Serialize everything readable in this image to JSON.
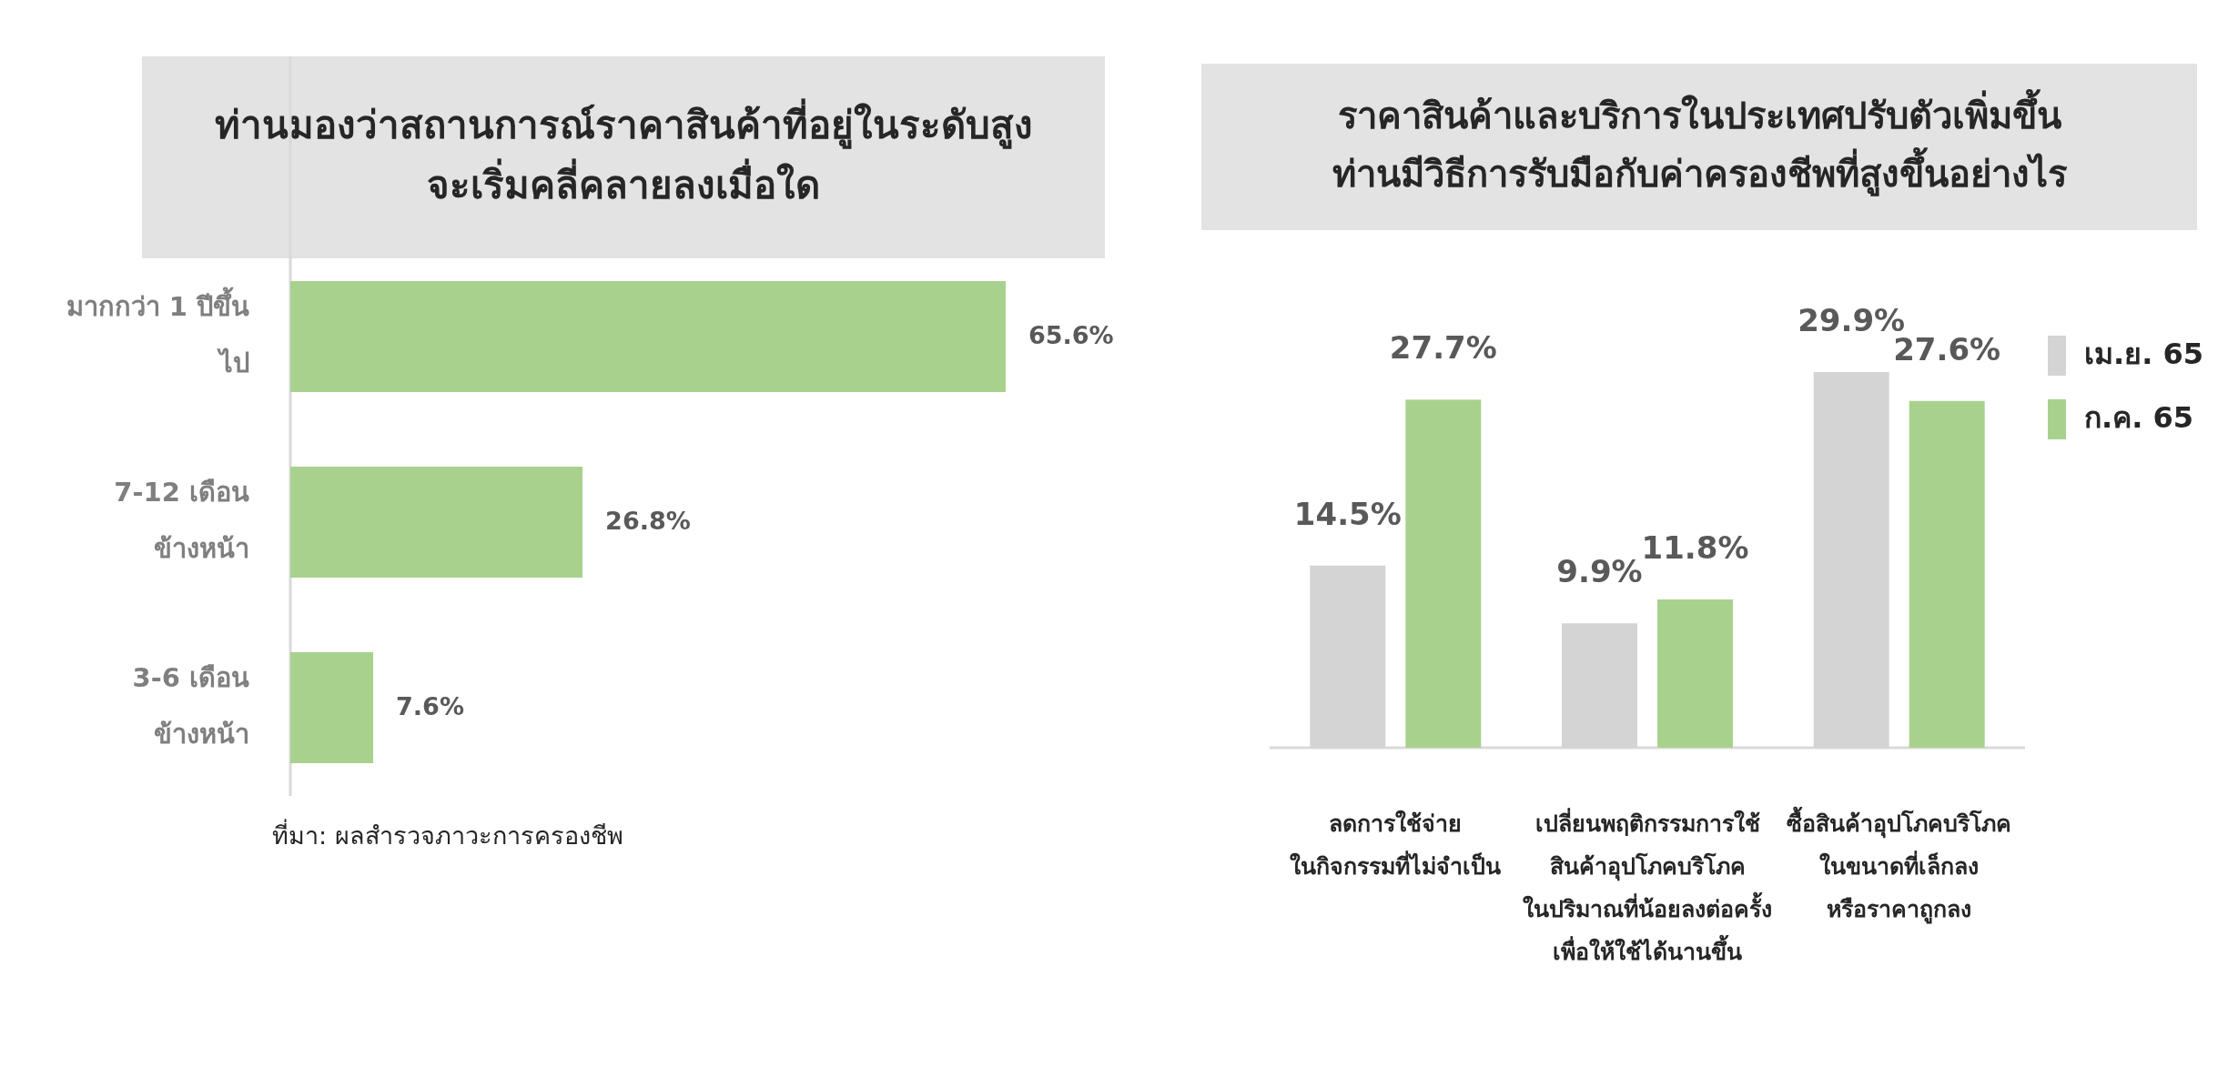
{
  "chart_data": [
    {
      "type": "bar",
      "orientation": "horizontal",
      "title": "ท่านมองว่าสถานการณ์ราคาสินค้าที่อยู่ในระดับสูง\nจะเริ่มคลี่คลายลงเมื่อใด",
      "categories": [
        "มากกว่า 1 ปีขึ้น\nไป",
        "7-12 เดือน\nข้างหน้า",
        "3-6 เดือน\nข้างหน้า"
      ],
      "values": [
        65.6,
        26.8,
        7.6
      ],
      "value_labels": [
        "65.6%",
        "26.8%",
        "7.6%"
      ],
      "color": "#a9d18e",
      "annotations": [
        "ที่มา: ผลสำรวจภาวะการครองชีพ"
      ]
    },
    {
      "type": "bar",
      "title": "ราคาสินค้าและบริการในประเทศปรับตัวเพิ่มขึ้น\nท่านมีวิธีการรับมือกับค่าครองชีพที่สูงขึ้นอย่างไร",
      "categories": [
        "ลดการใช้จ่าย\nในกิจกรรมที่ไม่จำเป็น",
        "เปลี่ยนพฤติกรรมการใช้\nสินค้าอุปโภคบริโภค\nในปริมาณที่น้อยลงต่อครั้ง\nเพื่อให้ใช้ได้นานขึ้น",
        "ซื้อสินค้าอุปโภคบริโภค\nในขนาดที่เล็กลง\nหรือราคาถูกลง"
      ],
      "legend": "right",
      "series": [
        {
          "name": "เม.ย. 65",
          "color": "#d4d4d4",
          "values": [
            14.5,
            9.9,
            29.9
          ],
          "value_labels": [
            "14.5%",
            "9.9%",
            "29.9%"
          ]
        },
        {
          "name": "ก.ค. 65",
          "color": "#a9d18e",
          "values": [
            27.7,
            11.8,
            27.6
          ],
          "value_labels": [
            "27.7%",
            "11.8%",
            "27.6%"
          ]
        }
      ]
    }
  ]
}
